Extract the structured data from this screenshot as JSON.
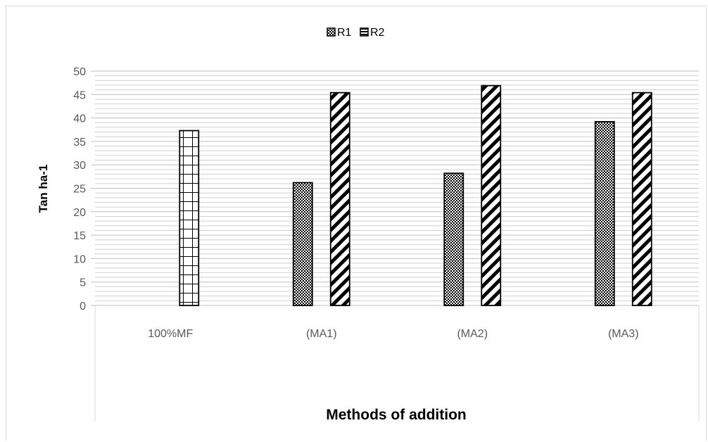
{
  "chart_data": {
    "type": "bar",
    "title": "",
    "xlabel": "Methods of addition",
    "ylabel": "Tan ha-1",
    "categories": [
      "100%MF",
      "(MA1)",
      "(MA2)",
      "(MA3)"
    ],
    "series": [
      {
        "name": "R1",
        "values": [
          0,
          26.2,
          28.2,
          39.2
        ]
      },
      {
        "name": "R2",
        "values": [
          37.3,
          45.4,
          46.9,
          45.4
        ]
      }
    ],
    "ylim": [
      0,
      50
    ],
    "yticks": [
      0,
      5,
      10,
      15,
      20,
      25,
      30,
      35,
      40,
      45,
      50
    ],
    "grid": true,
    "legend_position": "top",
    "colors": {
      "bar_fill": "#ffffff",
      "bar_stroke": "#000000",
      "grid": "#bfbfbf",
      "tick_text": "#595959"
    }
  }
}
